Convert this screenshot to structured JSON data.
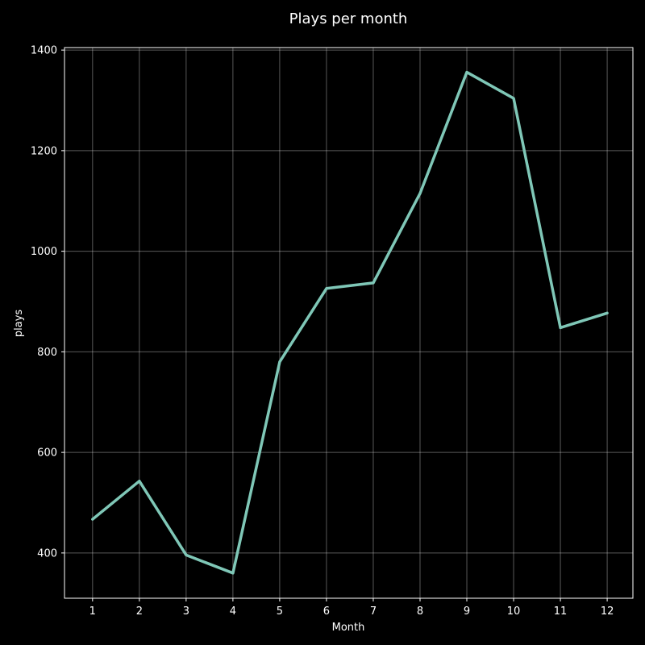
{
  "chart_data": {
    "type": "line",
    "title": "Plays per month",
    "xlabel": "Month",
    "ylabel": "plays",
    "x": [
      1,
      2,
      3,
      4,
      5,
      6,
      7,
      8,
      9,
      10,
      11,
      12
    ],
    "series": [
      {
        "values": [
          467,
          543,
          396,
          360,
          780,
          926,
          937,
          1115,
          1356,
          1304,
          848,
          877
        ],
        "color": "#7fc7b7"
      }
    ],
    "xticks": [
      "1",
      "2",
      "3",
      "4",
      "5",
      "6",
      "7",
      "8",
      "9",
      "10",
      "11",
      "12"
    ],
    "yticks": [
      400,
      600,
      800,
      1000,
      1200,
      1400
    ],
    "xlim": [
      0.4,
      12.55
    ],
    "ylim": [
      310,
      1405
    ],
    "grid": true,
    "background": "#000000",
    "foreground": "#ffffff"
  }
}
